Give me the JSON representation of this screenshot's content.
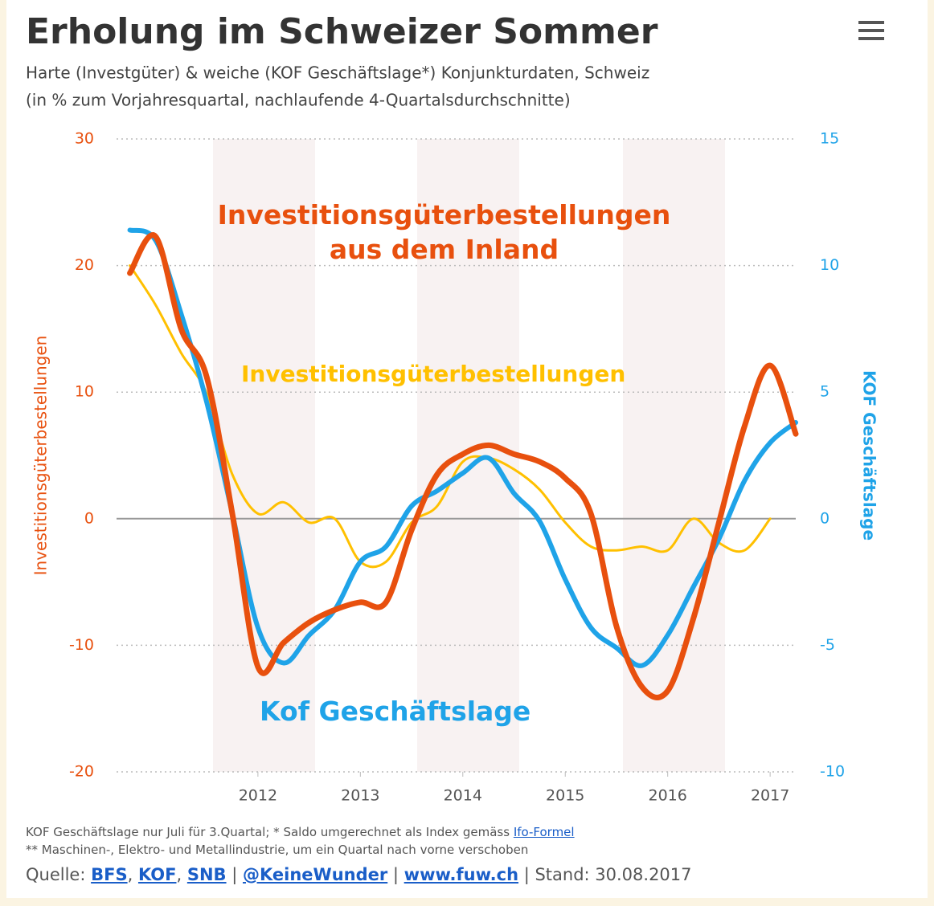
{
  "chart_data": {
    "type": "line",
    "title": "Erholung im Schweizer Sommer",
    "subtitle": [
      "Harte (Investgüter) & weiche (KOF Geschäftslage*) Konjunkturdaten, Schweiz",
      "(in % zum Vorjahresquartal, nachlaufende 4-Quartalsdurchschnitte)"
    ],
    "y_label": "Investitionsgüterbestellungen",
    "y2_label": "KOF Geschäftslage",
    "x": [
      2010.75,
      2011.0,
      2011.25,
      2011.5,
      2011.75,
      2012.0,
      2012.25,
      2012.5,
      2012.75,
      2013.0,
      2013.25,
      2013.5,
      2013.75,
      2014.0,
      2014.25,
      2014.5,
      2014.75,
      2015.0,
      2015.25,
      2015.5,
      2015.75,
      2016.0,
      2016.25,
      2016.5,
      2016.75,
      2017.0,
      2017.25
    ],
    "xlim": [
      2010.62,
      2017.25
    ],
    "xticks": [
      2012,
      2013,
      2014,
      2015,
      2016,
      2017
    ],
    "ylim": [
      -20,
      30
    ],
    "yticks": [
      -20,
      -10,
      0,
      10,
      20,
      30
    ],
    "y2lim": [
      -10,
      15
    ],
    "y2ticks": [
      -10,
      -5,
      0,
      5,
      10,
      15
    ],
    "grid": true,
    "series": [
      {
        "name": "Investitionsgüterbestellungen\naus dem Inland",
        "color": "#e8500e",
        "axis": "y",
        "width": 7,
        "values": [
          19.4,
          22.3,
          15,
          11.2,
          0.4,
          -11.7,
          -9.8,
          -8.2,
          -7.2,
          -6.6,
          -6.6,
          -0.9,
          3.5,
          5.1,
          5.8,
          5.1,
          4.5,
          3.2,
          0.4,
          -8.5,
          -13.3,
          -13.6,
          -7.9,
          -0.3,
          7.3,
          12.1,
          6.7
        ]
      },
      {
        "name": "Investitionsgüterbestellungen",
        "color": "#ffc000",
        "axis": "y",
        "width": 3,
        "values": [
          20,
          16.9,
          13.1,
          9.9,
          3.5,
          0.4,
          1.3,
          -0.3,
          0,
          -3.4,
          -3.4,
          -0.3,
          1,
          4.5,
          4.8,
          3.9,
          2.3,
          -0.3,
          -2.2,
          -2.5,
          -2.2,
          -2.5,
          0,
          -1.9,
          -2.5,
          0,
          null
        ]
      },
      {
        "name": "Kof Geschäftslage",
        "color": "#1fa3e8",
        "axis": "y2",
        "width": 6,
        "values": [
          11.4,
          11.0,
          8.1,
          4.6,
          0.2,
          -4.3,
          -5.7,
          -4.6,
          -3.6,
          -1.7,
          -1.1,
          0.5,
          1.1,
          1.8,
          2.4,
          1.0,
          -0.1,
          -2.4,
          -4.3,
          -5.1,
          -5.8,
          -4.6,
          -2.7,
          -0.8,
          1.5,
          3.0,
          3.8
        ]
      }
    ]
  },
  "footer": {
    "notes": [
      [
        {
          "text": "KOF Geschäftslage nur Juli für 3.Quartal; * Saldo umgerechnet als Index gemäss ",
          "link": false
        },
        {
          "text": "Ifo-Formel",
          "link": true
        }
      ],
      [
        {
          "text": "** Maschinen-, Elektro- und Metallindustrie, um ein Quartal nach vorne verschoben",
          "link": false
        }
      ]
    ],
    "source": [
      {
        "text": "Quelle: ",
        "link": false
      },
      {
        "text": "BFS",
        "link": true
      },
      {
        "text": ", ",
        "link": false
      },
      {
        "text": "KOF",
        "link": true
      },
      {
        "text": ", ",
        "link": false
      },
      {
        "text": "SNB",
        "link": true
      },
      {
        "text": " | ",
        "link": false
      },
      {
        "text": "@KeineWunder",
        "link": true
      },
      {
        "text": " | ",
        "link": false
      },
      {
        "text": "www.fuw.ch",
        "link": true
      },
      {
        "text": " | Stand: 30.08.2017",
        "link": false
      }
    ]
  }
}
